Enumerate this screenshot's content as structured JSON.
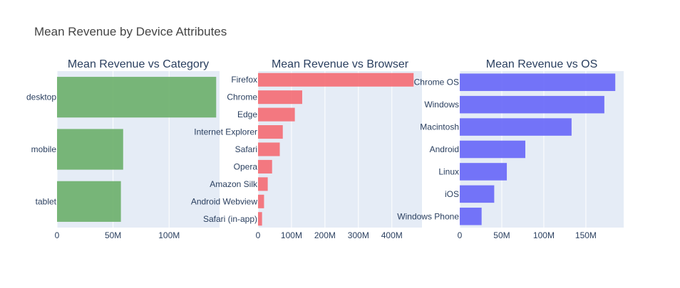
{
  "title": "Mean Revenue by Device Attributes",
  "chart_data": [
    {
      "type": "bar",
      "orientation": "horizontal",
      "title": "Mean Revenue vs Category",
      "color": "#6aaf6a",
      "categories": [
        "desktop",
        "mobile",
        "tablet"
      ],
      "values": [
        142000000,
        59000000,
        57000000
      ],
      "xlim": [
        0,
        145000000
      ],
      "xticks": [
        {
          "value": 0,
          "label": "0"
        },
        {
          "value": 50000000,
          "label": "50M"
        },
        {
          "value": 100000000,
          "label": "100M"
        }
      ],
      "grid": true
    },
    {
      "type": "bar",
      "orientation": "horizontal",
      "title": "Mean Revenue vs Browser",
      "color": "#f46b73",
      "categories": [
        "Firefox",
        "Chrome",
        "Edge",
        "Internet Explorer",
        "Safari",
        "Opera",
        "Amazon Silk",
        "Android Webview",
        "Safari (in-app)"
      ],
      "values": [
        465000000,
        132000000,
        110000000,
        74000000,
        65000000,
        42000000,
        29000000,
        18000000,
        12000000
      ],
      "xlim": [
        0,
        490000000
      ],
      "xticks": [
        {
          "value": 0,
          "label": "0"
        },
        {
          "value": 100000000,
          "label": "100M"
        },
        {
          "value": 200000000,
          "label": "200M"
        },
        {
          "value": 300000000,
          "label": "300M"
        },
        {
          "value": 400000000,
          "label": "400M"
        }
      ],
      "grid": true
    },
    {
      "type": "bar",
      "orientation": "horizontal",
      "title": "Mean Revenue vs OS",
      "color": "#6666f8",
      "categories": [
        "Chrome OS",
        "Windows",
        "Macintosh",
        "Android",
        "Linux",
        "iOS",
        "Windows Phone"
      ],
      "values": [
        185000000,
        172000000,
        133000000,
        78000000,
        56000000,
        41000000,
        26000000
      ],
      "xlim": [
        0,
        195000000
      ],
      "xticks": [
        {
          "value": 0,
          "label": "0"
        },
        {
          "value": 50000000,
          "label": "50M"
        },
        {
          "value": 100000000,
          "label": "100M"
        },
        {
          "value": 150000000,
          "label": "150M"
        }
      ],
      "grid": true
    }
  ]
}
